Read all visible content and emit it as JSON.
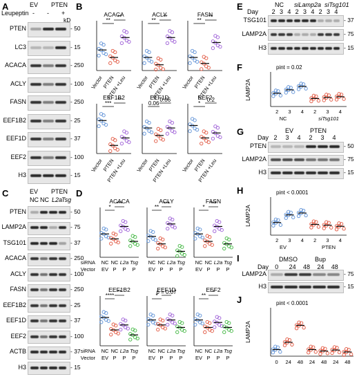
{
  "panels": {
    "A": "A",
    "B": "B",
    "C": "C",
    "D": "D",
    "E": "E",
    "F": "F",
    "G": "G",
    "H": "H",
    "I": "I",
    "J": "J"
  },
  "panelA": {
    "hdr_ev": "EV",
    "hdr_pten": "PTEN",
    "hdr_leupeptin": "Leupeptin",
    "hdr_signs": [
      "-",
      "-",
      "+"
    ],
    "hdr_kd": "kD",
    "rows": [
      "PTEN",
      "LC3",
      "ACACA",
      "ACLY",
      "FASN",
      "EEF1B2",
      "EEF1D",
      "EEF2",
      "H3"
    ],
    "markers": [
      "50",
      "15",
      "250",
      "100",
      "250",
      "25",
      "37",
      "100",
      "15"
    ]
  },
  "panelB": {
    "ylabel": "Relative protein levels",
    "titles": [
      "ACACA",
      "ACLY",
      "FASN",
      "EEF1B2",
      "EEF1D",
      "EEF2"
    ],
    "xcats": [
      "Vector",
      "PTEN",
      "PTEN\n+Leu"
    ],
    "sig": [
      [
        "**",
        "**"
      ],
      [
        "**",
        "**"
      ],
      [
        "**",
        "**"
      ],
      [
        "***",
        "**"
      ],
      [
        "0.06",
        "0.06"
      ],
      [
        "*",
        "0.2"
      ]
    ]
  },
  "panelC": {
    "hdr_ev": "EV",
    "hdr_pten": "PTEN",
    "hdr_nc": "NC",
    "hdr_l2a": "L2a",
    "hdr_tsg": "Tsg",
    "rows": [
      "PTEN",
      "LAMP2A",
      "TSG101",
      "ACACA",
      "ACLY",
      "FASN",
      "EEF1B2",
      "EEF1D",
      "EEF2",
      "ACTB",
      "H3"
    ],
    "markers": [
      "50",
      "75",
      "37",
      "250",
      "100",
      "250",
      "25",
      "37",
      "100",
      "37",
      "15"
    ]
  },
  "panelD": {
    "ylabel": "Relative protein levels",
    "titles": [
      "ACACA",
      "ACLY",
      "FASN",
      "EEF1B2",
      "EEF1D",
      "EEF2"
    ],
    "row_sirna": "siRNA",
    "row_vector": "Vector",
    "sirna": [
      "NC",
      "NC",
      "L2a",
      "Tsg"
    ],
    "vector": [
      "EV",
      "P",
      "P",
      "P"
    ],
    "sig": [
      [
        "*",
        "***"
      ],
      [
        "**",
        "***"
      ],
      [
        "*",
        "***"
      ],
      [
        "****",
        "**"
      ],
      [
        "*",
        "p = 0.07"
      ],
      [
        "**",
        "*"
      ]
    ]
  },
  "panelE": {
    "hdr_nc": "NC",
    "hdr_sil2a": "siLamp2a",
    "hdr_sitsg": "siTsg101",
    "day_label": "Day",
    "days": [
      "2",
      "3",
      "4",
      "2",
      "3",
      "4",
      "2",
      "3",
      "4"
    ],
    "rows": [
      "TSG101",
      "LAMP2A",
      "H3"
    ],
    "markers": [
      "37",
      "75",
      "15"
    ]
  },
  "panelF": {
    "ylabel": "LAMP2A",
    "pint": "pint = 0.02",
    "days": [
      "2",
      "3",
      "4",
      "2",
      "3",
      "4"
    ],
    "groups": [
      "NC",
      "siTsg101"
    ]
  },
  "panelG": {
    "hdr_ev": "EV",
    "hdr_pten": "PTEN",
    "day_label": "Day",
    "days": [
      "2",
      "3",
      "4",
      "2",
      "3",
      "4"
    ],
    "rows": [
      "PTEN",
      "LAMP2A",
      "H3"
    ],
    "markers": [
      "50",
      "75",
      "15"
    ]
  },
  "panelH": {
    "ylabel": "LAMP2A",
    "pint": "pint < 0.0001",
    "days": [
      "2",
      "3",
      "4",
      "2",
      "3",
      "4"
    ],
    "groups": [
      "EV",
      "PTEN"
    ]
  },
  "panelI": {
    "hdr_dmso": "DMSO",
    "hdr_bup": "Bup",
    "day_label": "Day",
    "days": [
      "0",
      "24",
      "48",
      "24",
      "48"
    ],
    "rows": [
      "LAMP2A",
      "H3"
    ],
    "markers": [
      "75",
      "15"
    ]
  },
  "panelJ": {
    "ylabel": "LAMP2A",
    "pint": "pint < 0.0001",
    "days": [
      "0",
      "24",
      "48",
      "24",
      "48",
      "24",
      "48"
    ]
  },
  "kd": "kD"
}
